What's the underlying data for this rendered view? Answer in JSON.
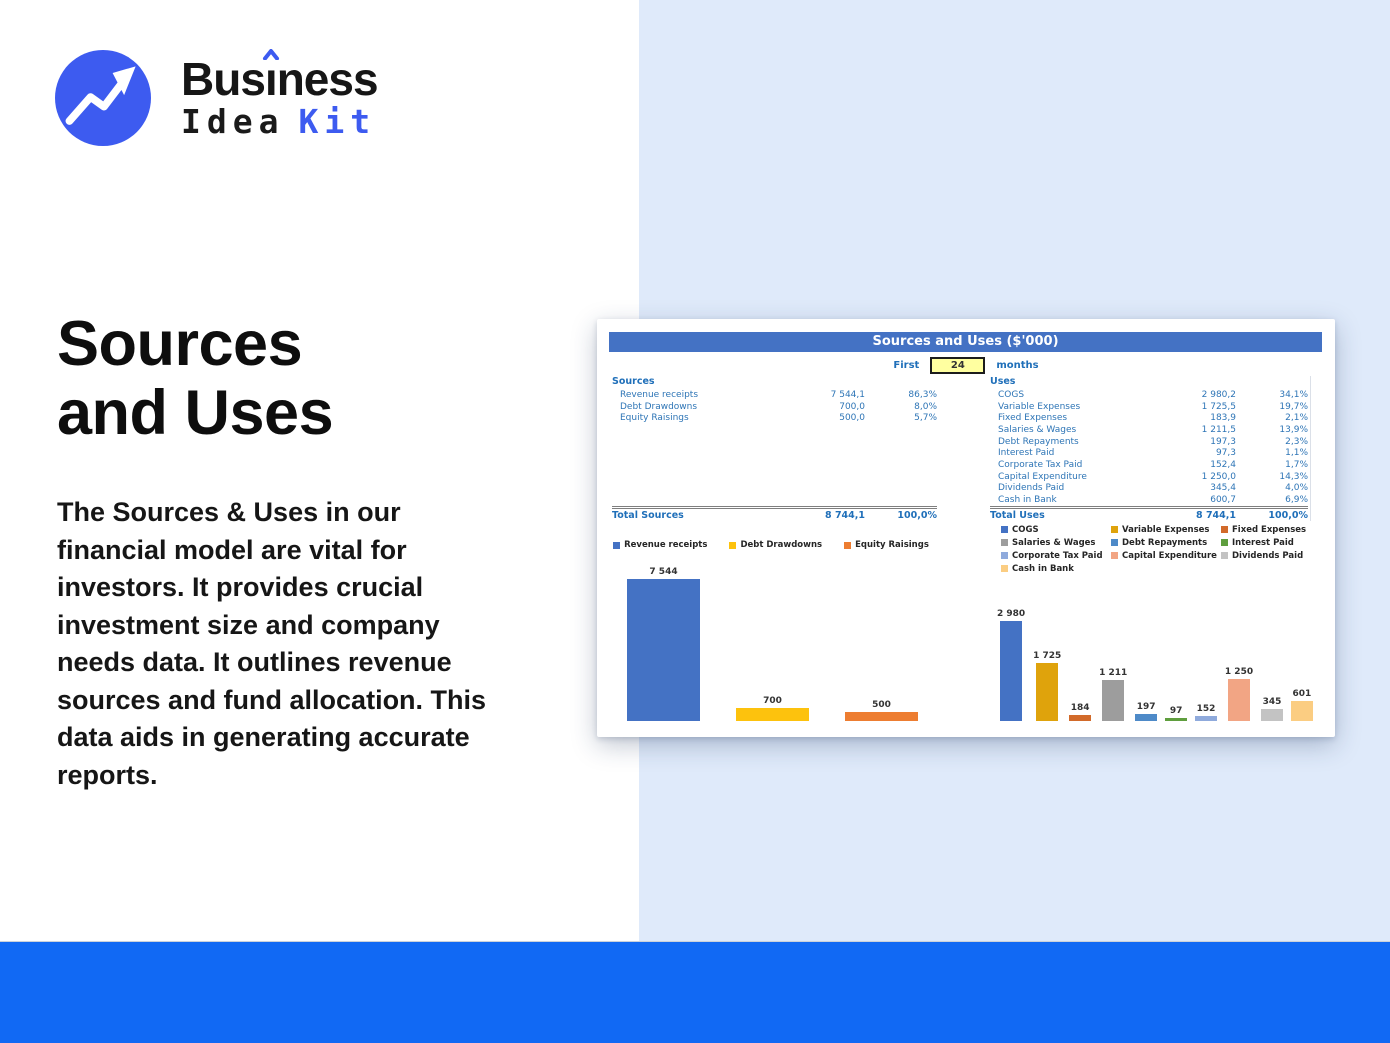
{
  "logo": {
    "name_pre": "Bus",
    "name_i": "ı",
    "name_post": "ness",
    "line2_word1": "Idea",
    "line2_word2": "Kit"
  },
  "hero": {
    "title_line1": "Sources",
    "title_line2": "and Uses",
    "description": "The Sources & Uses in our financial model are vital for investors. It provides crucial investment size and company needs data. It outlines revenue sources and fund allocation. This data aids in generating accurate reports."
  },
  "spreadsheet": {
    "title": "Sources and Uses ($'000)",
    "period": {
      "prefix": "First",
      "value": "24",
      "suffix": "months"
    },
    "sources": {
      "heading": "Sources",
      "rows": [
        {
          "label": "Revenue receipts",
          "amount": "7 544,1",
          "pct": "86,3%"
        },
        {
          "label": "Debt Drawdowns",
          "amount": "700,0",
          "pct": "8,0%"
        },
        {
          "label": "Equity Raisings",
          "amount": "500,0",
          "pct": "5,7%"
        }
      ],
      "total": {
        "label": "Total Sources",
        "amount": "8 744,1",
        "pct": "100,0%"
      }
    },
    "uses": {
      "heading": "Uses",
      "rows": [
        {
          "label": "COGS",
          "amount": "2 980,2",
          "pct": "34,1%"
        },
        {
          "label": "Variable Expenses",
          "amount": "1 725,5",
          "pct": "19,7%"
        },
        {
          "label": "Fixed Expenses",
          "amount": "183,9",
          "pct": "2,1%"
        },
        {
          "label": "Salaries & Wages",
          "amount": "1 211,5",
          "pct": "13,9%"
        },
        {
          "label": "Debt Repayments",
          "amount": "197,3",
          "pct": "2,3%"
        },
        {
          "label": "Interest Paid",
          "amount": "97,3",
          "pct": "1,1%"
        },
        {
          "label": "Corporate Tax Paid",
          "amount": "152,4",
          "pct": "1,7%"
        },
        {
          "label": "Capital Expenditure",
          "amount": "1 250,0",
          "pct": "14,3%"
        },
        {
          "label": "Dividends Paid",
          "amount": "345,4",
          "pct": "4,0%"
        },
        {
          "label": "Cash in Bank",
          "amount": "600,7",
          "pct": "6,9%"
        }
      ],
      "total": {
        "label": "Total Uses",
        "amount": "8 744,1",
        "pct": "100,0%"
      }
    }
  },
  "chart_data": [
    {
      "type": "bar",
      "title": "Sources chart",
      "categories": [
        "Revenue receipts",
        "Debt Drawdowns",
        "Equity Raisings"
      ],
      "values": [
        7544,
        700,
        500
      ],
      "data_labels": [
        "7 544",
        "700",
        "500"
      ],
      "colors": [
        "#4472c4",
        "#fdc20d",
        "#ed7d31"
      ],
      "xlabel": "",
      "ylabel": "",
      "ylim": [
        0,
        7544
      ],
      "grid": false,
      "legend_position": "top"
    },
    {
      "type": "bar",
      "title": "Uses chart",
      "categories": [
        "COGS",
        "Variable Expenses",
        "Fixed Expenses",
        "Salaries & Wages",
        "Debt Repayments",
        "Interest Paid",
        "Corporate Tax Paid",
        "Capital Expenditure",
        "Dividends Paid",
        "Cash in Bank"
      ],
      "values": [
        2980,
        1725,
        184,
        1211,
        197,
        97,
        152,
        1250,
        345,
        601
      ],
      "data_labels": [
        "2 980",
        "1 725",
        "184",
        "1 211",
        "197",
        "97",
        "152",
        "1 250",
        "345",
        "601"
      ],
      "colors": [
        "#4472c4",
        "#dfa30c",
        "#d26a2a",
        "#9d9d9d",
        "#4e8ac8",
        "#5f9e3e",
        "#8faadc",
        "#f2a584",
        "#c3c3c3",
        "#fbcd82"
      ],
      "xlabel": "",
      "ylabel": "",
      "ylim": [
        0,
        2980
      ],
      "grid": false,
      "legend_position": "top"
    }
  ],
  "colors": {
    "logo_blue": "#3d5bf0",
    "panel_light_blue": "#dfeafa",
    "bottom_bar_blue": "#1169f4",
    "sheet_header_blue": "#4472c4",
    "table_text_blue": "#2e75b6",
    "input_yellow": "#ffffa0"
  }
}
